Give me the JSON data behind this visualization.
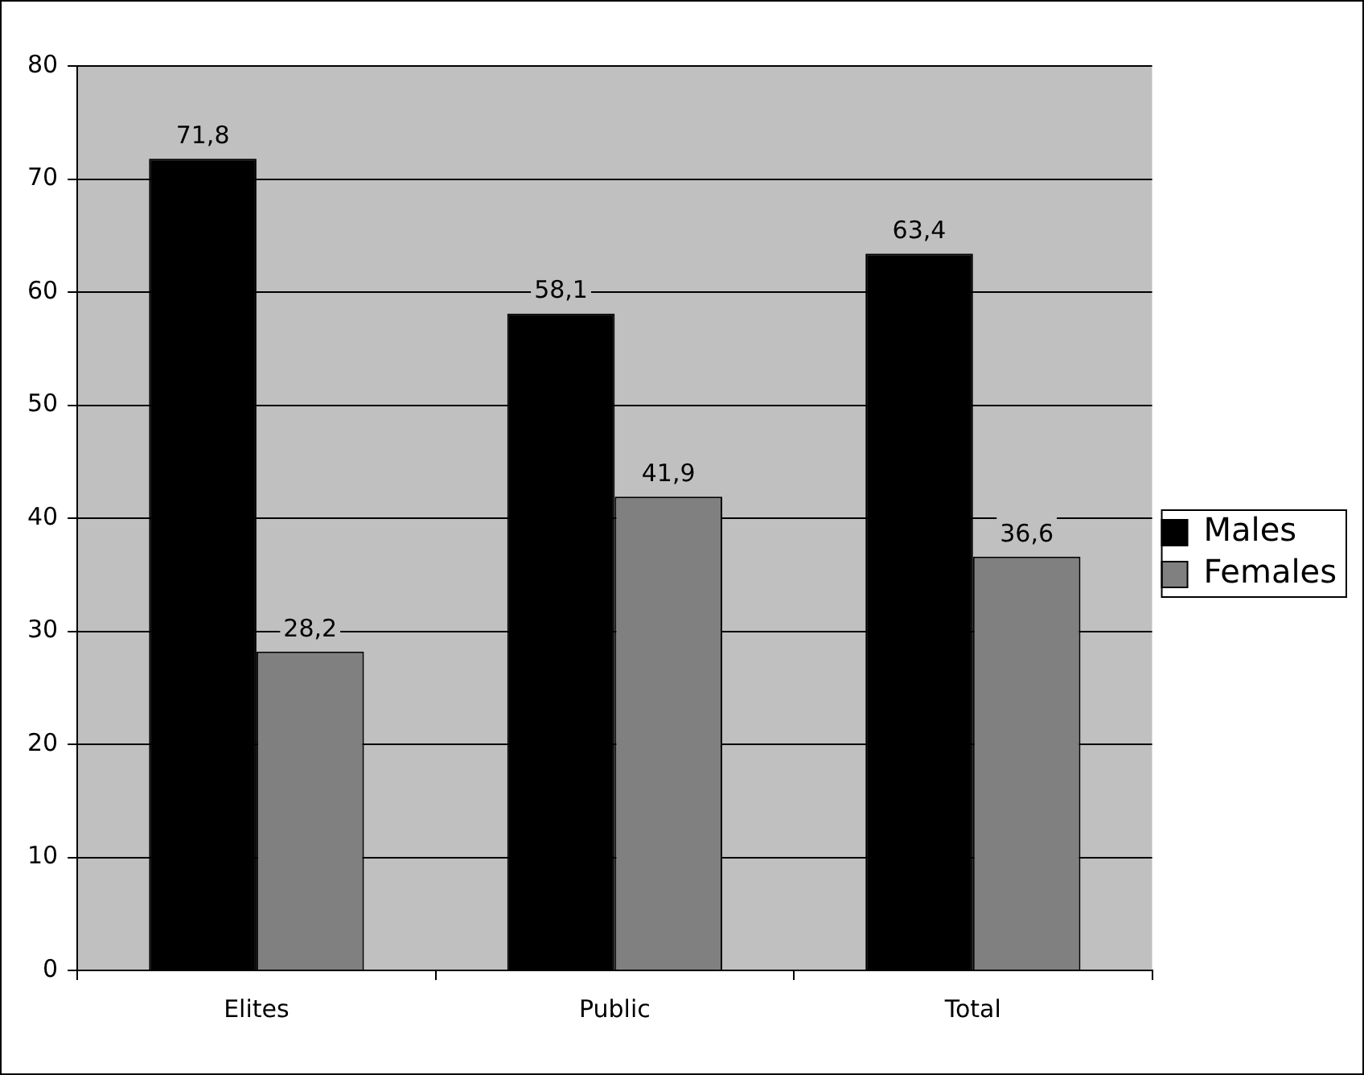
{
  "chart_data": {
    "type": "bar",
    "categories": [
      "Elites",
      "Public",
      "Total"
    ],
    "series": [
      {
        "name": "Males",
        "color": "#000000",
        "values": [
          71.8,
          58.1,
          63.4
        ],
        "value_labels": [
          "71,8",
          "58,1",
          "63,4"
        ]
      },
      {
        "name": "Females",
        "color": "#808080",
        "values": [
          28.2,
          41.9,
          36.6
        ],
        "value_labels": [
          "28,2",
          "41,9",
          "36,6"
        ]
      }
    ],
    "ylim": [
      0,
      80
    ],
    "yticks": [
      0,
      10,
      20,
      30,
      40,
      50,
      60,
      70,
      80
    ],
    "grid": "y",
    "legend": "right"
  }
}
